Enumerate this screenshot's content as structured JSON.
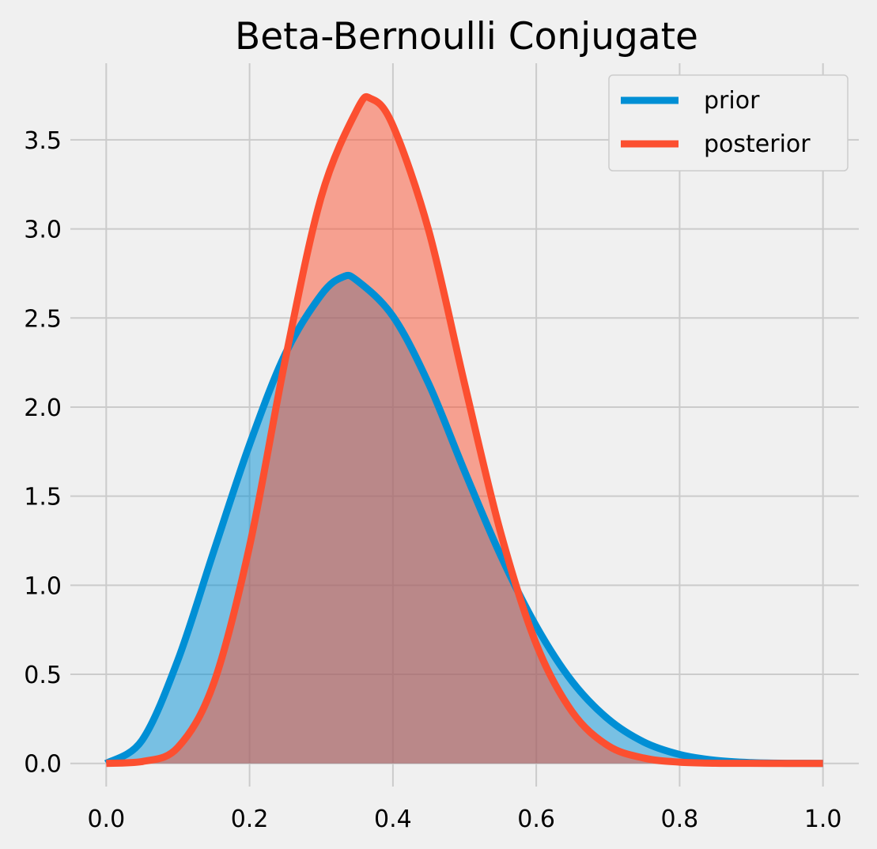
{
  "chart_data": {
    "type": "area",
    "title": "Beta-Bernoulli Conjugate",
    "xlabel": "",
    "ylabel": "",
    "xlim": [
      -0.05,
      1.05
    ],
    "ylim": [
      -0.13,
      3.93
    ],
    "x_ticks": [
      "0.0",
      "0.2",
      "0.4",
      "0.6",
      "0.8",
      "1.0"
    ],
    "y_ticks": [
      "0.0",
      "0.5",
      "1.0",
      "1.5",
      "2.0",
      "2.5",
      "3.0",
      "3.5"
    ],
    "grid": true,
    "legend_position": "top-right",
    "series": [
      {
        "name": "prior",
        "color": "#008fd5",
        "fill_opacity": 0.5,
        "x": [
          0.0,
          0.05,
          0.1,
          0.15,
          0.2,
          0.25,
          0.3,
          0.33,
          0.35,
          0.4,
          0.45,
          0.5,
          0.55,
          0.6,
          0.65,
          0.7,
          0.75,
          0.8,
          0.85,
          0.9,
          0.95,
          1.0
        ],
        "y": [
          0.0,
          0.13,
          0.58,
          1.19,
          1.79,
          2.3,
          2.63,
          2.73,
          2.71,
          2.51,
          2.13,
          1.64,
          1.17,
          0.77,
          0.46,
          0.25,
          0.12,
          0.05,
          0.017,
          0.004,
          0.0005,
          0.0
        ]
      },
      {
        "name": "posterior",
        "color": "#fc4f30",
        "fill_opacity": 0.5,
        "x": [
          0.0,
          0.05,
          0.1,
          0.15,
          0.2,
          0.25,
          0.3,
          0.35,
          0.37,
          0.4,
          0.45,
          0.5,
          0.55,
          0.6,
          0.65,
          0.7,
          0.75,
          0.8,
          0.85,
          0.9,
          0.95,
          1.0
        ],
        "y": [
          0.0,
          0.01,
          0.09,
          0.45,
          1.22,
          2.27,
          3.18,
          3.67,
          3.73,
          3.58,
          2.99,
          2.13,
          1.3,
          0.67,
          0.29,
          0.1,
          0.03,
          0.007,
          0.001,
          0.0001,
          0.0,
          0.0
        ]
      }
    ]
  }
}
